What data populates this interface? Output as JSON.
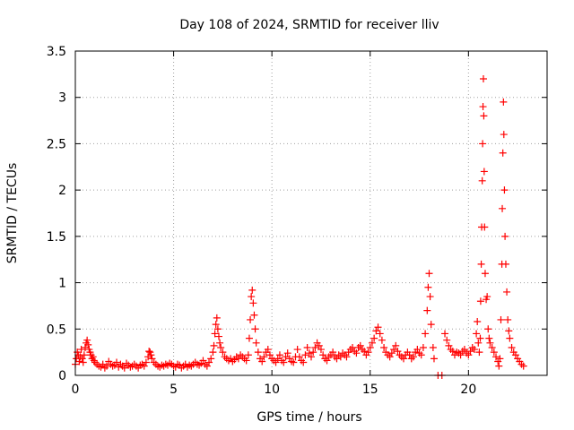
{
  "chart_data": {
    "type": "scatter",
    "title": "Day 108 of 2024, SRMTID for receiver lliv",
    "xlabel": "GPS time / hours",
    "ylabel": "SRMTID / TECUs",
    "xlim": [
      0,
      24
    ],
    "ylim": [
      0,
      3.5
    ],
    "xticks": [
      0,
      5,
      10,
      15,
      20
    ],
    "xtick_labels": [
      "0",
      "5",
      "10",
      "15",
      "20"
    ],
    "yticks": [
      0,
      0.5,
      1,
      1.5,
      2,
      2.5,
      3,
      3.5
    ],
    "ytick_labels": [
      "0",
      "0.5",
      "1",
      "1.5",
      "2",
      "2.5",
      "3",
      "3.5"
    ],
    "grid": true,
    "marker": "+",
    "colors": {
      "series": "#ff0000",
      "grid": "#a0a0a0",
      "axis": "#000000"
    },
    "series": [
      {
        "name": "SRMTID",
        "points": [
          [
            0.0,
            0.12
          ],
          [
            0.05,
            0.18
          ],
          [
            0.1,
            0.25
          ],
          [
            0.15,
            0.22
          ],
          [
            0.2,
            0.15
          ],
          [
            0.25,
            0.2
          ],
          [
            0.3,
            0.28
          ],
          [
            0.35,
            0.18
          ],
          [
            0.4,
            0.14
          ],
          [
            0.45,
            0.22
          ],
          [
            0.5,
            0.3
          ],
          [
            0.55,
            0.35
          ],
          [
            0.6,
            0.38
          ],
          [
            0.65,
            0.33
          ],
          [
            0.7,
            0.28
          ],
          [
            0.75,
            0.25
          ],
          [
            0.8,
            0.22
          ],
          [
            0.85,
            0.18
          ],
          [
            0.9,
            0.2
          ],
          [
            0.95,
            0.16
          ],
          [
            1.0,
            0.14
          ],
          [
            1.1,
            0.12
          ],
          [
            1.2,
            0.1
          ],
          [
            1.3,
            0.09
          ],
          [
            1.4,
            0.12
          ],
          [
            1.5,
            0.08
          ],
          [
            1.6,
            0.1
          ],
          [
            1.7,
            0.15
          ],
          [
            1.8,
            0.12
          ],
          [
            1.9,
            0.1
          ],
          [
            2.0,
            0.11
          ],
          [
            2.1,
            0.14
          ],
          [
            2.2,
            0.09
          ],
          [
            2.3,
            0.12
          ],
          [
            2.4,
            0.1
          ],
          [
            2.5,
            0.08
          ],
          [
            2.6,
            0.13
          ],
          [
            2.7,
            0.11
          ],
          [
            2.8,
            0.09
          ],
          [
            2.9,
            0.1
          ],
          [
            3.0,
            0.12
          ],
          [
            3.1,
            0.1
          ],
          [
            3.2,
            0.08
          ],
          [
            3.3,
            0.11
          ],
          [
            3.4,
            0.12
          ],
          [
            3.5,
            0.1
          ],
          [
            3.6,
            0.14
          ],
          [
            3.7,
            0.2
          ],
          [
            3.75,
            0.26
          ],
          [
            3.8,
            0.25
          ],
          [
            3.85,
            0.22
          ],
          [
            3.9,
            0.18
          ],
          [
            4.0,
            0.14
          ],
          [
            4.1,
            0.12
          ],
          [
            4.2,
            0.1
          ],
          [
            4.3,
            0.09
          ],
          [
            4.4,
            0.11
          ],
          [
            4.5,
            0.1
          ],
          [
            4.6,
            0.12
          ],
          [
            4.7,
            0.11
          ],
          [
            4.8,
            0.13
          ],
          [
            4.9,
            0.12
          ],
          [
            5.0,
            0.1
          ],
          [
            5.1,
            0.09
          ],
          [
            5.2,
            0.12
          ],
          [
            5.3,
            0.11
          ],
          [
            5.4,
            0.08
          ],
          [
            5.5,
            0.1
          ],
          [
            5.6,
            0.12
          ],
          [
            5.7,
            0.09
          ],
          [
            5.8,
            0.11
          ],
          [
            5.9,
            0.1
          ],
          [
            6.0,
            0.12
          ],
          [
            6.1,
            0.14
          ],
          [
            6.2,
            0.12
          ],
          [
            6.3,
            0.11
          ],
          [
            6.4,
            0.13
          ],
          [
            6.5,
            0.16
          ],
          [
            6.6,
            0.12
          ],
          [
            6.7,
            0.1
          ],
          [
            6.8,
            0.14
          ],
          [
            6.9,
            0.18
          ],
          [
            7.0,
            0.25
          ],
          [
            7.05,
            0.32
          ],
          [
            7.1,
            0.45
          ],
          [
            7.15,
            0.55
          ],
          [
            7.2,
            0.62
          ],
          [
            7.25,
            0.5
          ],
          [
            7.3,
            0.42
          ],
          [
            7.35,
            0.35
          ],
          [
            7.4,
            0.3
          ],
          [
            7.5,
            0.25
          ],
          [
            7.6,
            0.2
          ],
          [
            7.7,
            0.18
          ],
          [
            7.8,
            0.16
          ],
          [
            7.9,
            0.18
          ],
          [
            8.0,
            0.15
          ],
          [
            8.1,
            0.17
          ],
          [
            8.2,
            0.2
          ],
          [
            8.3,
            0.18
          ],
          [
            8.4,
            0.22
          ],
          [
            8.5,
            0.2
          ],
          [
            8.6,
            0.18
          ],
          [
            8.7,
            0.16
          ],
          [
            8.8,
            0.22
          ],
          [
            8.85,
            0.4
          ],
          [
            8.9,
            0.6
          ],
          [
            8.95,
            0.85
          ],
          [
            9.0,
            0.92
          ],
          [
            9.05,
            0.78
          ],
          [
            9.1,
            0.65
          ],
          [
            9.15,
            0.5
          ],
          [
            9.2,
            0.35
          ],
          [
            9.3,
            0.25
          ],
          [
            9.4,
            0.18
          ],
          [
            9.5,
            0.15
          ],
          [
            9.6,
            0.2
          ],
          [
            9.7,
            0.25
          ],
          [
            9.8,
            0.28
          ],
          [
            9.9,
            0.22
          ],
          [
            10.0,
            0.18
          ],
          [
            10.1,
            0.16
          ],
          [
            10.2,
            0.14
          ],
          [
            10.3,
            0.18
          ],
          [
            10.4,
            0.22
          ],
          [
            10.5,
            0.16
          ],
          [
            10.6,
            0.14
          ],
          [
            10.7,
            0.2
          ],
          [
            10.8,
            0.24
          ],
          [
            10.9,
            0.18
          ],
          [
            11.0,
            0.15
          ],
          [
            11.1,
            0.14
          ],
          [
            11.2,
            0.2
          ],
          [
            11.3,
            0.28
          ],
          [
            11.4,
            0.2
          ],
          [
            11.5,
            0.16
          ],
          [
            11.6,
            0.14
          ],
          [
            11.7,
            0.22
          ],
          [
            11.8,
            0.3
          ],
          [
            11.9,
            0.24
          ],
          [
            12.0,
            0.2
          ],
          [
            12.1,
            0.25
          ],
          [
            12.2,
            0.3
          ],
          [
            12.3,
            0.35
          ],
          [
            12.4,
            0.32
          ],
          [
            12.5,
            0.28
          ],
          [
            12.6,
            0.22
          ],
          [
            12.7,
            0.18
          ],
          [
            12.8,
            0.16
          ],
          [
            12.9,
            0.2
          ],
          [
            13.0,
            0.22
          ],
          [
            13.1,
            0.25
          ],
          [
            13.2,
            0.2
          ],
          [
            13.3,
            0.18
          ],
          [
            13.4,
            0.22
          ],
          [
            13.5,
            0.2
          ],
          [
            13.6,
            0.24
          ],
          [
            13.7,
            0.22
          ],
          [
            13.8,
            0.2
          ],
          [
            13.9,
            0.25
          ],
          [
            14.0,
            0.28
          ],
          [
            14.1,
            0.3
          ],
          [
            14.2,
            0.26
          ],
          [
            14.3,
            0.24
          ],
          [
            14.4,
            0.3
          ],
          [
            14.5,
            0.32
          ],
          [
            14.6,
            0.28
          ],
          [
            14.7,
            0.26
          ],
          [
            14.8,
            0.22
          ],
          [
            14.9,
            0.25
          ],
          [
            15.0,
            0.3
          ],
          [
            15.1,
            0.35
          ],
          [
            15.2,
            0.4
          ],
          [
            15.3,
            0.48
          ],
          [
            15.4,
            0.52
          ],
          [
            15.5,
            0.45
          ],
          [
            15.6,
            0.38
          ],
          [
            15.7,
            0.3
          ],
          [
            15.8,
            0.25
          ],
          [
            15.9,
            0.22
          ],
          [
            16.0,
            0.2
          ],
          [
            16.1,
            0.24
          ],
          [
            16.2,
            0.28
          ],
          [
            16.3,
            0.32
          ],
          [
            16.4,
            0.26
          ],
          [
            16.5,
            0.22
          ],
          [
            16.6,
            0.2
          ],
          [
            16.7,
            0.18
          ],
          [
            16.8,
            0.22
          ],
          [
            16.9,
            0.25
          ],
          [
            17.0,
            0.22
          ],
          [
            17.1,
            0.18
          ],
          [
            17.2,
            0.2
          ],
          [
            17.3,
            0.25
          ],
          [
            17.4,
            0.28
          ],
          [
            17.5,
            0.24
          ],
          [
            17.6,
            0.22
          ],
          [
            17.7,
            0.3
          ],
          [
            17.8,
            0.45
          ],
          [
            17.9,
            0.7
          ],
          [
            17.95,
            0.95
          ],
          [
            18.0,
            1.1
          ],
          [
            18.05,
            0.85
          ],
          [
            18.1,
            0.55
          ],
          [
            18.2,
            0.3
          ],
          [
            18.25,
            0.18
          ],
          [
            18.45,
            0.0
          ],
          [
            18.65,
            0.0
          ],
          [
            18.8,
            0.45
          ],
          [
            18.9,
            0.38
          ],
          [
            19.0,
            0.32
          ],
          [
            19.1,
            0.28
          ],
          [
            19.2,
            0.26
          ],
          [
            19.3,
            0.22
          ],
          [
            19.4,
            0.25
          ],
          [
            19.5,
            0.24
          ],
          [
            19.6,
            0.22
          ],
          [
            19.7,
            0.26
          ],
          [
            19.8,
            0.28
          ],
          [
            19.9,
            0.24
          ],
          [
            20.0,
            0.22
          ],
          [
            20.1,
            0.26
          ],
          [
            20.2,
            0.3
          ],
          [
            20.3,
            0.28
          ],
          [
            20.4,
            0.45
          ],
          [
            20.45,
            0.58
          ],
          [
            20.5,
            0.35
          ],
          [
            20.55,
            0.25
          ],
          [
            20.6,
            0.4
          ],
          [
            20.62,
            0.8
          ],
          [
            20.65,
            1.2
          ],
          [
            20.67,
            1.6
          ],
          [
            20.7,
            2.1
          ],
          [
            20.72,
            2.5
          ],
          [
            20.74,
            2.9
          ],
          [
            20.76,
            3.2
          ],
          [
            20.78,
            2.8
          ],
          [
            20.8,
            2.2
          ],
          [
            20.82,
            1.6
          ],
          [
            20.85,
            1.1
          ],
          [
            20.9,
            0.82
          ],
          [
            20.95,
            0.85
          ],
          [
            21.0,
            0.5
          ],
          [
            21.05,
            0.4
          ],
          [
            21.1,
            0.35
          ],
          [
            21.2,
            0.3
          ],
          [
            21.3,
            0.25
          ],
          [
            21.4,
            0.2
          ],
          [
            21.5,
            0.15
          ],
          [
            21.55,
            0.1
          ],
          [
            21.6,
            0.18
          ],
          [
            21.65,
            0.6
          ],
          [
            21.7,
            1.2
          ],
          [
            21.72,
            1.8
          ],
          [
            21.75,
            2.4
          ],
          [
            21.78,
            2.95
          ],
          [
            21.8,
            2.6
          ],
          [
            21.83,
            2.0
          ],
          [
            21.86,
            1.5
          ],
          [
            21.9,
            1.2
          ],
          [
            21.95,
            0.9
          ],
          [
            22.0,
            0.6
          ],
          [
            22.05,
            0.48
          ],
          [
            22.1,
            0.4
          ],
          [
            22.2,
            0.3
          ],
          [
            22.3,
            0.25
          ],
          [
            22.4,
            0.22
          ],
          [
            22.5,
            0.18
          ],
          [
            22.6,
            0.15
          ],
          [
            22.7,
            0.12
          ],
          [
            22.8,
            0.1
          ]
        ]
      }
    ]
  }
}
